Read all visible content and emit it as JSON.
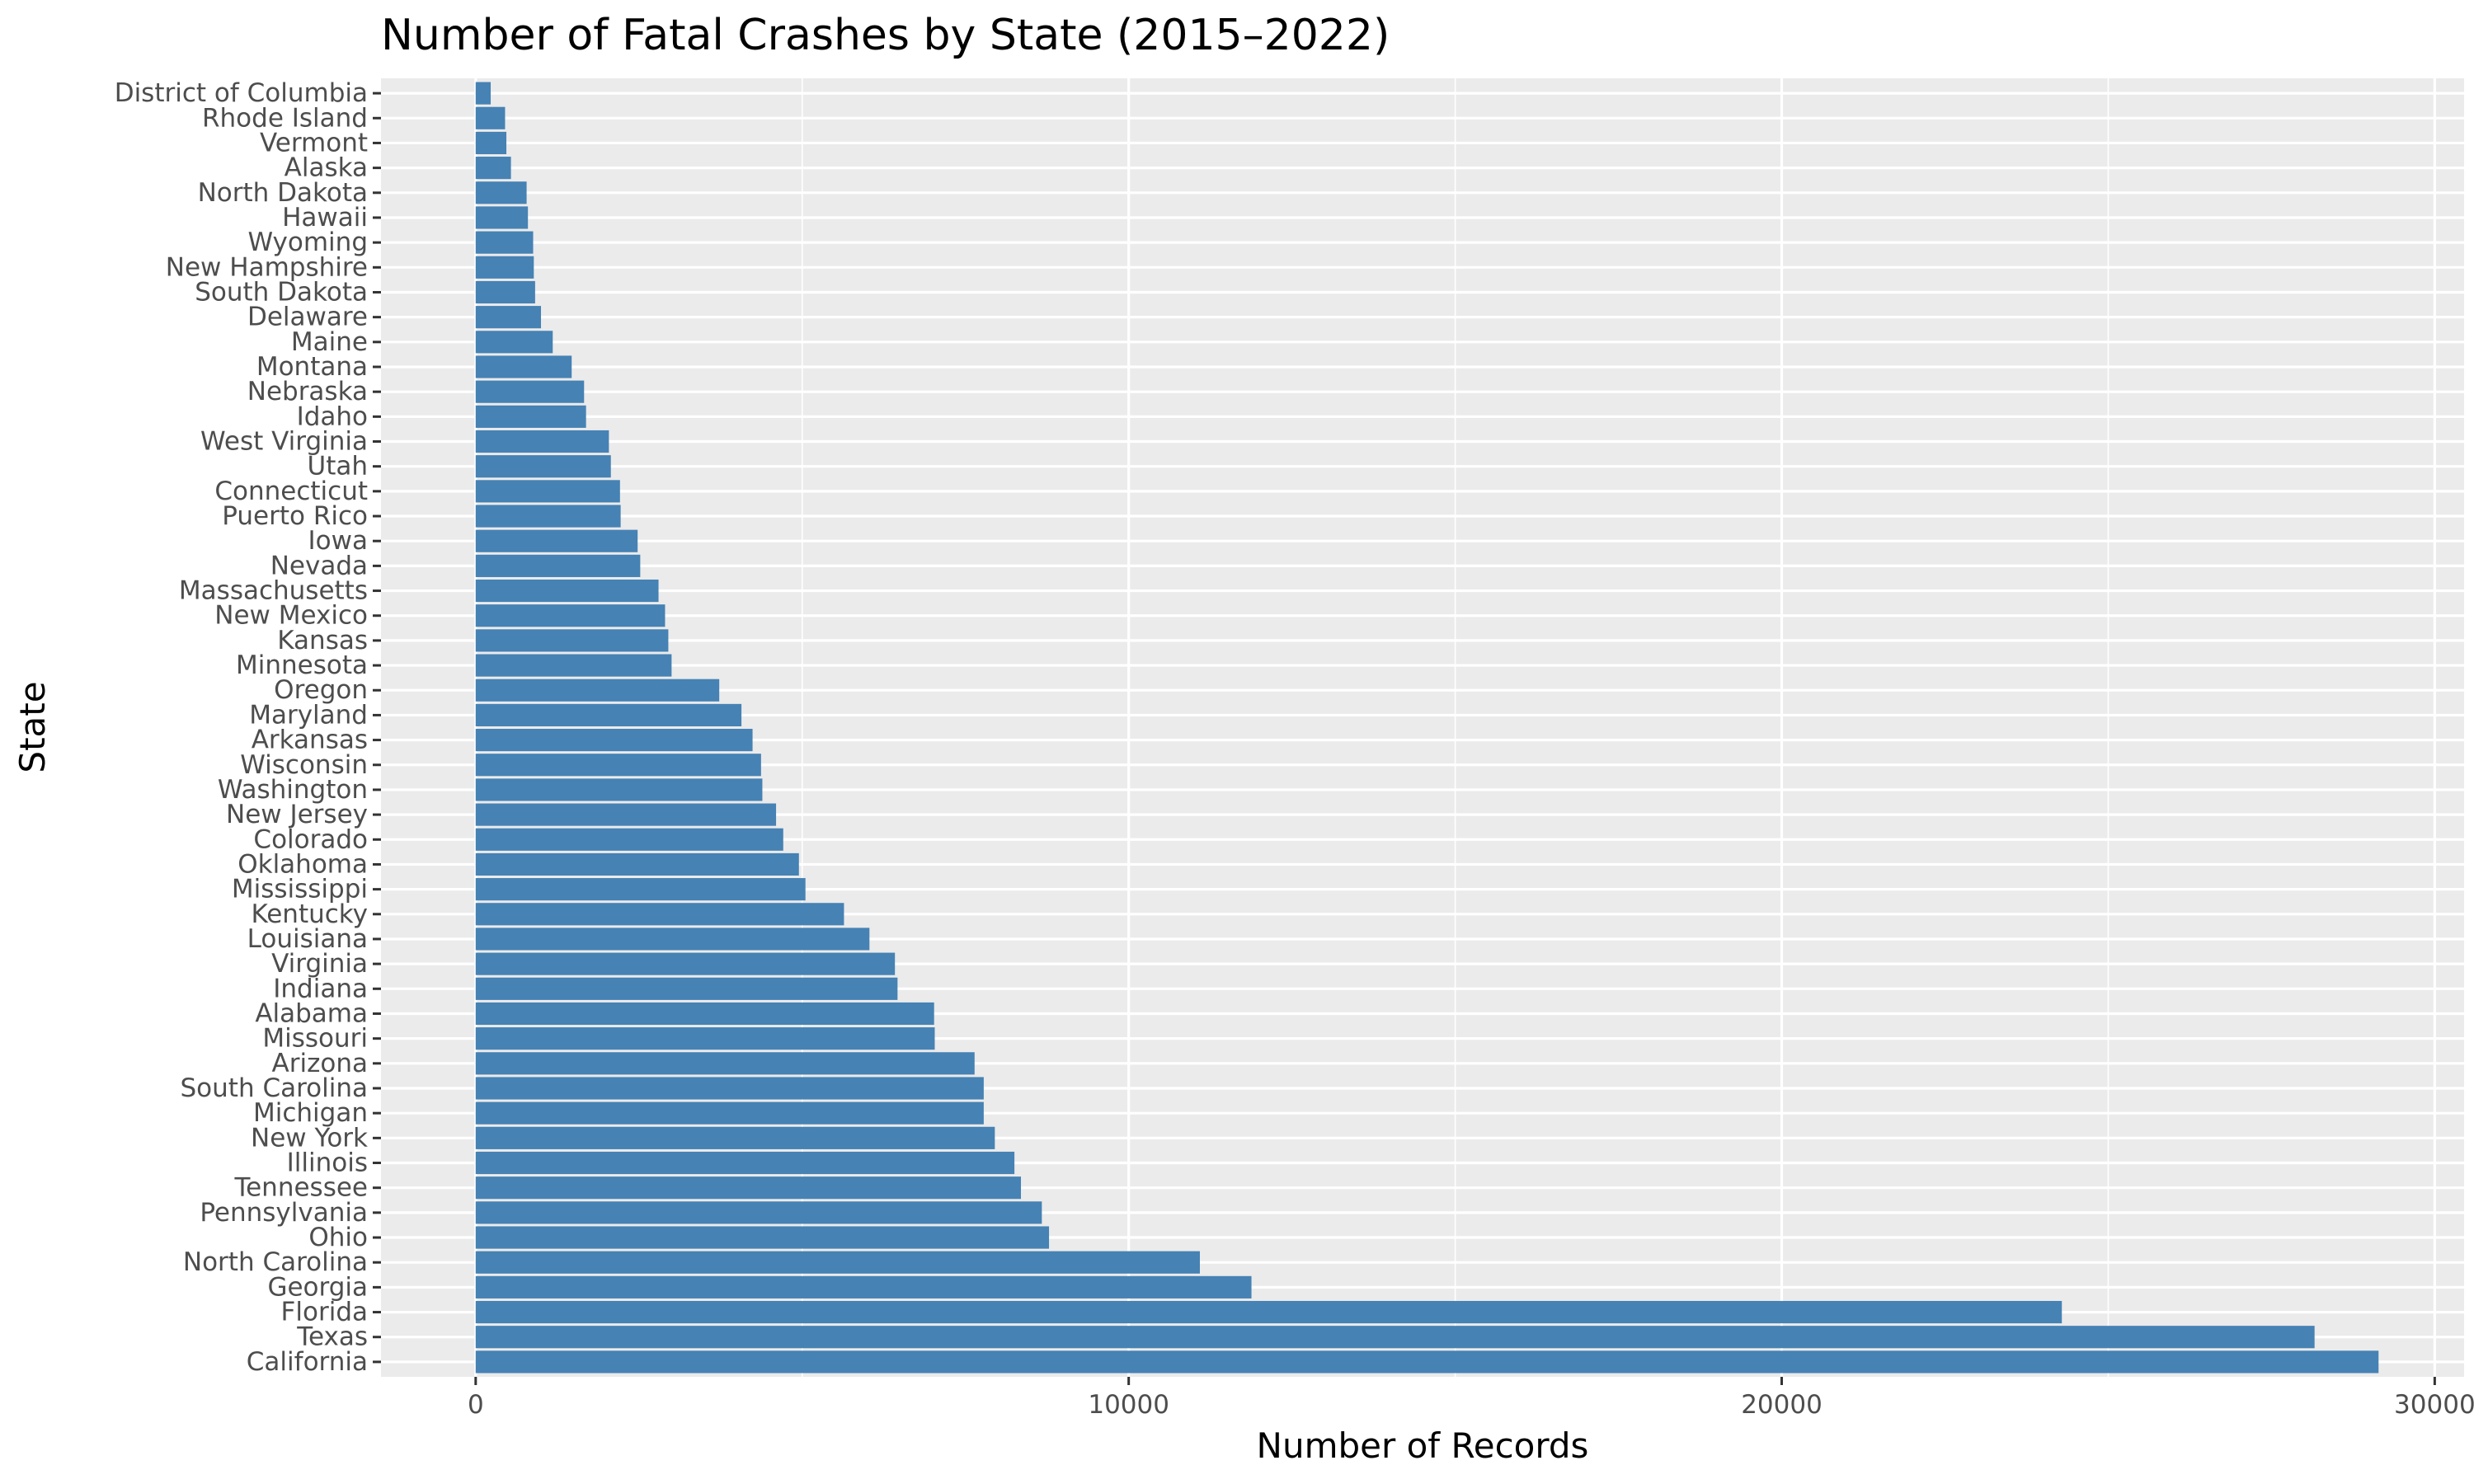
{
  "colors": {
    "bar": "#4682B4",
    "panel_background": "#EBEBEB",
    "grid": "#FFFFFF",
    "tick_text": "#4D4D4D"
  },
  "chart_data": {
    "type": "bar",
    "orientation": "horizontal",
    "title": "Number of Fatal Crashes by State (2015–2022)",
    "xlabel": "Number of Records",
    "ylabel": "State",
    "xlim": [
      -1450,
      30450
    ],
    "xticks": [
      0,
      10000,
      20000,
      30000
    ],
    "grid": true,
    "legend": "none",
    "categories": [
      "District of Columbia",
      "Rhode Island",
      "Vermont",
      "Alaska",
      "North Dakota",
      "Hawaii",
      "Wyoming",
      "New Hampshire",
      "South Dakota",
      "Delaware",
      "Maine",
      "Montana",
      "Nebraska",
      "Idaho",
      "West Virginia",
      "Utah",
      "Connecticut",
      "Puerto Rico",
      "Iowa",
      "Nevada",
      "Massachusetts",
      "New Mexico",
      "Kansas",
      "Minnesota",
      "Oregon",
      "Maryland",
      "Arkansas",
      "Wisconsin",
      "Washington",
      "New Jersey",
      "Colorado",
      "Oklahoma",
      "Mississippi",
      "Kentucky",
      "Louisiana",
      "Virginia",
      "Indiana",
      "Alabama",
      "Missouri",
      "Arizona",
      "South Carolina",
      "Michigan",
      "New York",
      "Illinois",
      "Tennessee",
      "Pennsylvania",
      "Ohio",
      "North Carolina",
      "Georgia",
      "Florida",
      "Texas",
      "California"
    ],
    "values": [
      230,
      450,
      470,
      540,
      780,
      800,
      880,
      890,
      910,
      1000,
      1180,
      1470,
      1660,
      1690,
      2040,
      2070,
      2210,
      2220,
      2480,
      2520,
      2800,
      2900,
      2950,
      3000,
      3730,
      4070,
      4240,
      4370,
      4390,
      4600,
      4710,
      4950,
      5050,
      5640,
      6030,
      6420,
      6460,
      7020,
      7030,
      7640,
      7780,
      7780,
      7950,
      8250,
      8350,
      8670,
      8780,
      11090,
      11880,
      24290,
      28160,
      29140
    ]
  }
}
